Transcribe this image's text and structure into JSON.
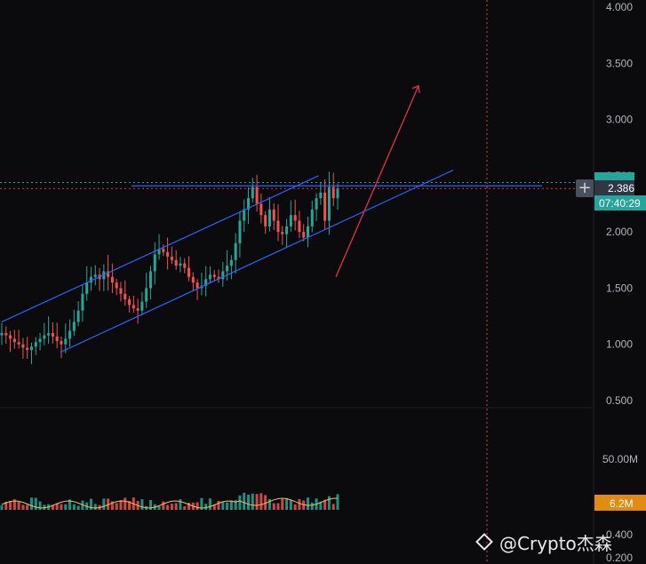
{
  "chart_data": {
    "type": "candlestick",
    "y_ticks": [
      "4.000",
      "3.500",
      "3.000",
      "2.500",
      "2.000",
      "1.500",
      "1.000",
      "0.500"
    ],
    "ylim": [
      0.5,
      4.0
    ],
    "volume_ticks": [
      "50.00M"
    ],
    "lower_ticks": [
      "0.400",
      "0.200"
    ],
    "last_price": "2.386",
    "countdown": "07:40:29",
    "volume_last": "6.2M",
    "horizontal_level": 2.41,
    "channel_upper": [
      {
        "t": 0,
        "v": 1.2
      },
      {
        "t": 0.7,
        "v": 2.5
      }
    ],
    "channel_lower": [
      {
        "t": 0.09,
        "v": 0.93
      },
      {
        "t": 1,
        "v": 2.55
      }
    ],
    "arrow": {
      "from_value": 1.6,
      "to_value": 3.3
    },
    "closes": [
      1.1,
      1.08,
      1.05,
      1.02,
      1.0,
      0.97,
      0.95,
      0.98,
      1.02,
      1.05,
      1.08,
      1.1,
      1.07,
      1.03,
      1.0,
      1.05,
      1.12,
      1.2,
      1.3,
      1.45,
      1.55,
      1.6,
      1.62,
      1.58,
      1.65,
      1.6,
      1.55,
      1.5,
      1.45,
      1.4,
      1.35,
      1.32,
      1.3,
      1.38,
      1.5,
      1.65,
      1.8,
      1.85,
      1.82,
      1.78,
      1.75,
      1.7,
      1.72,
      1.68,
      1.6,
      1.55,
      1.5,
      1.52,
      1.58,
      1.62,
      1.6,
      1.58,
      1.65,
      1.7,
      1.75,
      1.9,
      2.1,
      2.2,
      2.3,
      2.4,
      2.25,
      2.15,
      2.05,
      2.2,
      2.1,
      2.0,
      1.98,
      2.05,
      2.15,
      2.1,
      2.0,
      1.95,
      2.05,
      2.2,
      2.3,
      2.35,
      2.1,
      2.4,
      2.3,
      2.386
    ],
    "volume_colors": {
      "up": "#26a69a",
      "down": "#ef5350",
      "ma": "#f0c05a"
    },
    "colors": {
      "up": "#26a69a",
      "down": "#ef5350",
      "channel": "#2962ff",
      "arrow": "#e5304a",
      "crosshair": "#e5304a",
      "price_tag": "#2f3644",
      "countdown_bg": "#26a69a",
      "volume_tag": "#e08c13"
    }
  },
  "watermark": {
    "text": "@Crypto杰森"
  },
  "add_button": {
    "label": "+"
  }
}
